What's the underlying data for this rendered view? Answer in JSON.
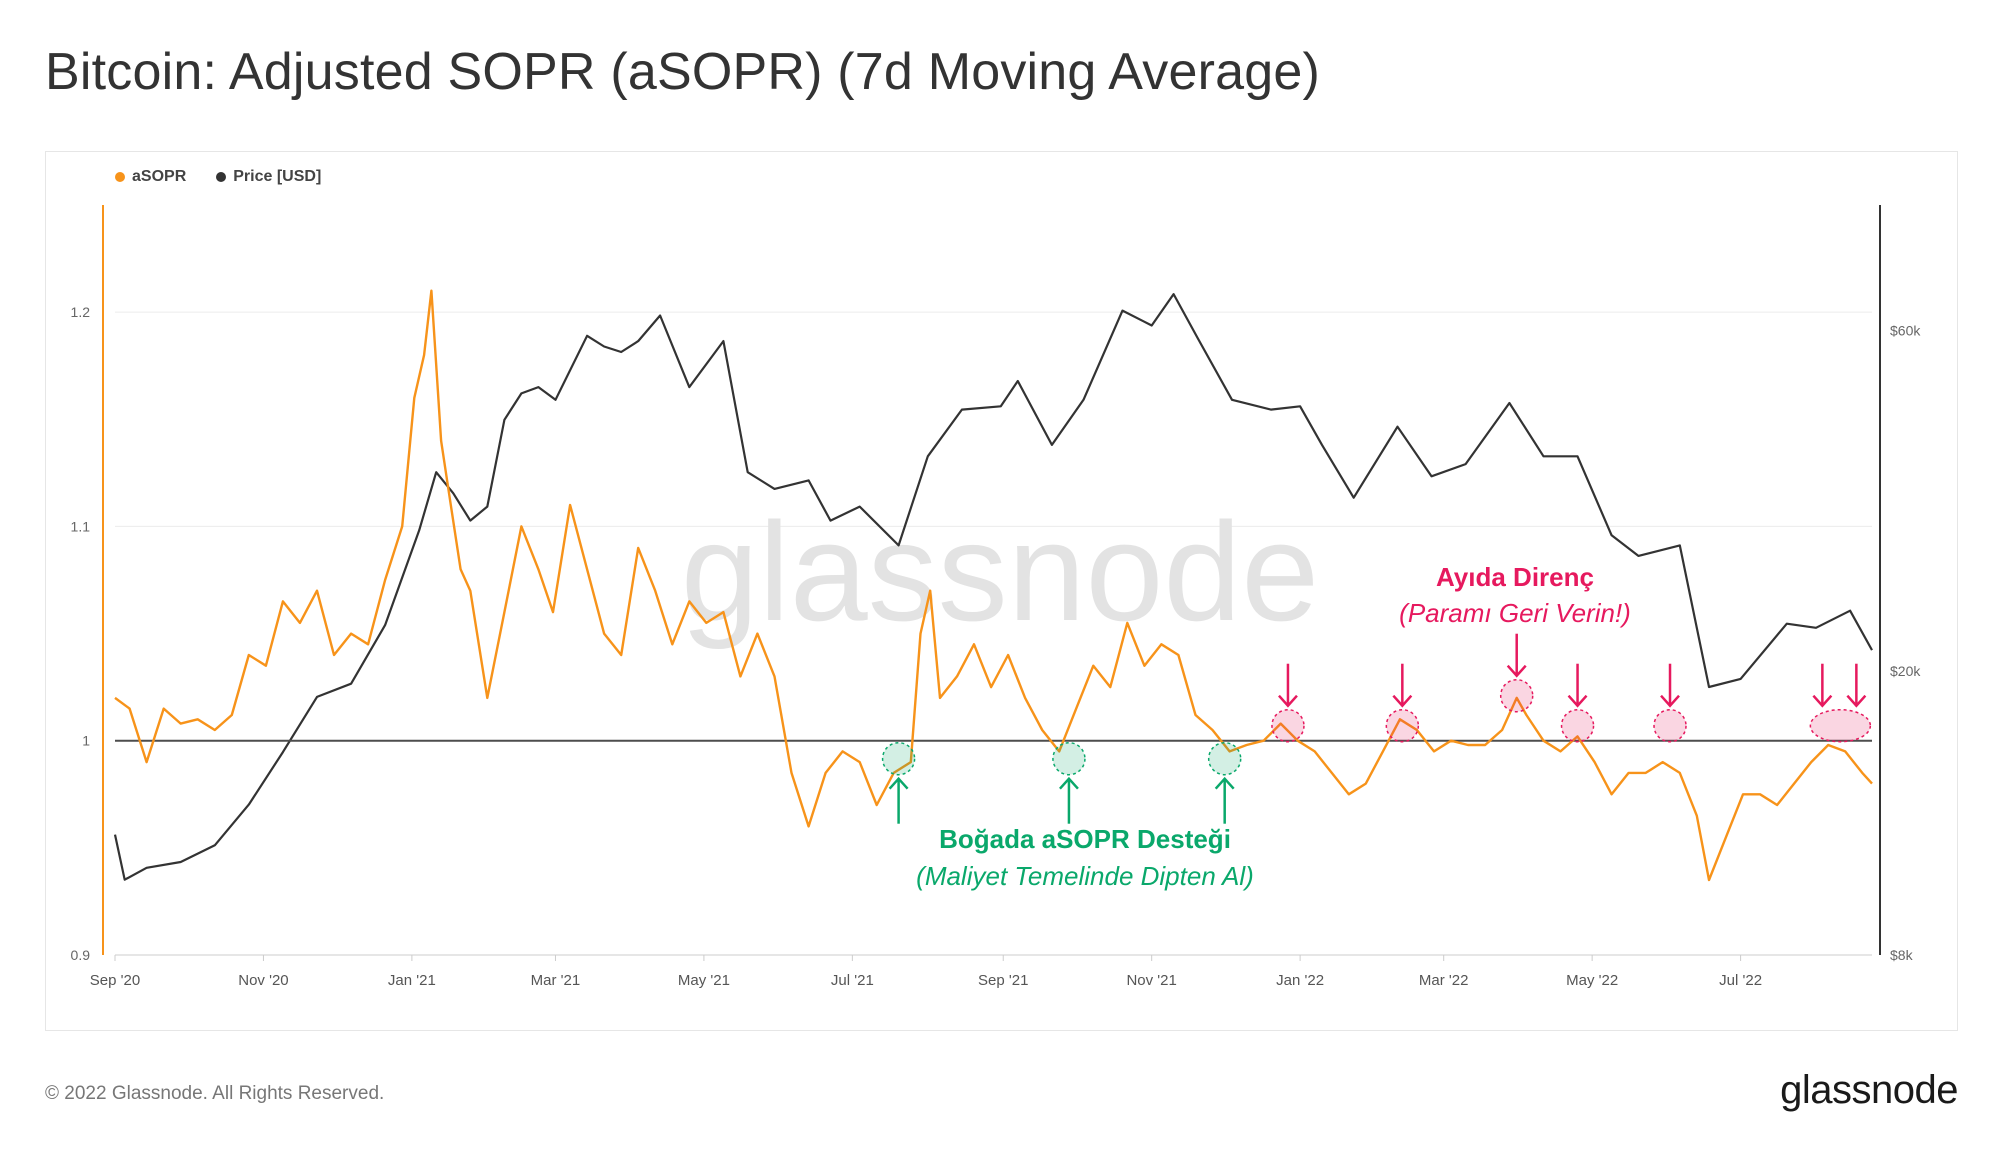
{
  "title": "Bitcoin: Adjusted SOPR (aSOPR) (7d Moving Average)",
  "footer": {
    "copyright": "© 2022 Glassnode. All Rights Reserved.",
    "brand": "glassnode"
  },
  "watermark": "glassnode",
  "colors": {
    "asopr": "#f7931a",
    "price": "#333333",
    "bull": "#0aa86b",
    "bear": "#e6195e",
    "baseline": "#4d4d4d"
  },
  "chart_data": {
    "type": "line",
    "title": "Bitcoin: Adjusted SOPR (aSOPR) (7d Moving Average)",
    "legend": [
      {
        "name": "aSOPR",
        "color": "#f7931a"
      },
      {
        "name": "Price [USD]",
        "color": "#333333"
      }
    ],
    "x_tick_labels": [
      "Sep '20",
      "Nov '20",
      "Jan '21",
      "Mar '21",
      "May '21",
      "Jul '21",
      "Sep '21",
      "Nov '21",
      "Jan '22",
      "Mar '22",
      "May '22",
      "Jul '22"
    ],
    "y_left": {
      "ticks": [
        0.9,
        1,
        1.1,
        1.2
      ],
      "tick_labels": [
        "0.9",
        "1",
        "1.1",
        "1.2"
      ],
      "range": [
        0.9,
        1.25
      ]
    },
    "y_right": {
      "scale": "log",
      "ticks": [
        8000,
        20000,
        60000
      ],
      "tick_labels": [
        "$8k",
        "$20k",
        "$60k"
      ],
      "range": [
        8000,
        90000
      ]
    },
    "baseline": 1,
    "x_range": [
      "2020-09-01",
      "2022-08-24"
    ],
    "series": [
      {
        "name": "aSOPR",
        "axis": "left",
        "points": [
          [
            "2020-09-01",
            1.02
          ],
          [
            "2020-09-07",
            1.015
          ],
          [
            "2020-09-14",
            0.99
          ],
          [
            "2020-09-21",
            1.015
          ],
          [
            "2020-09-28",
            1.008
          ],
          [
            "2020-10-05",
            1.01
          ],
          [
            "2020-10-12",
            1.005
          ],
          [
            "2020-10-19",
            1.012
          ],
          [
            "2020-10-26",
            1.04
          ],
          [
            "2020-11-02",
            1.035
          ],
          [
            "2020-11-09",
            1.065
          ],
          [
            "2020-11-16",
            1.055
          ],
          [
            "2020-11-23",
            1.07
          ],
          [
            "2020-11-30",
            1.04
          ],
          [
            "2020-12-07",
            1.05
          ],
          [
            "2020-12-14",
            1.045
          ],
          [
            "2020-12-21",
            1.075
          ],
          [
            "2020-12-28",
            1.1
          ],
          [
            "2021-01-02",
            1.16
          ],
          [
            "2021-01-06",
            1.18
          ],
          [
            "2021-01-09",
            1.21
          ],
          [
            "2021-01-13",
            1.14
          ],
          [
            "2021-01-17",
            1.11
          ],
          [
            "2021-01-21",
            1.08
          ],
          [
            "2021-01-25",
            1.07
          ],
          [
            "2021-02-01",
            1.02
          ],
          [
            "2021-02-08",
            1.06
          ],
          [
            "2021-02-15",
            1.1
          ],
          [
            "2021-02-22",
            1.08
          ],
          [
            "2021-02-28",
            1.06
          ],
          [
            "2021-03-07",
            1.11
          ],
          [
            "2021-03-14",
            1.08
          ],
          [
            "2021-03-21",
            1.05
          ],
          [
            "2021-03-28",
            1.04
          ],
          [
            "2021-04-04",
            1.09
          ],
          [
            "2021-04-11",
            1.07
          ],
          [
            "2021-04-18",
            1.045
          ],
          [
            "2021-04-25",
            1.065
          ],
          [
            "2021-05-02",
            1.055
          ],
          [
            "2021-05-09",
            1.06
          ],
          [
            "2021-05-16",
            1.03
          ],
          [
            "2021-05-23",
            1.05
          ],
          [
            "2021-05-30",
            1.03
          ],
          [
            "2021-06-06",
            0.985
          ],
          [
            "2021-06-13",
            0.96
          ],
          [
            "2021-06-20",
            0.985
          ],
          [
            "2021-06-27",
            0.995
          ],
          [
            "2021-07-04",
            0.99
          ],
          [
            "2021-07-11",
            0.97
          ],
          [
            "2021-07-18",
            0.985
          ],
          [
            "2021-07-25",
            0.99
          ],
          [
            "2021-07-29",
            1.05
          ],
          [
            "2021-08-02",
            1.07
          ],
          [
            "2021-08-06",
            1.02
          ],
          [
            "2021-08-13",
            1.03
          ],
          [
            "2021-08-20",
            1.045
          ],
          [
            "2021-08-27",
            1.025
          ],
          [
            "2021-09-03",
            1.04
          ],
          [
            "2021-09-10",
            1.02
          ],
          [
            "2021-09-17",
            1.005
          ],
          [
            "2021-09-24",
            0.995
          ],
          [
            "2021-10-01",
            1.015
          ],
          [
            "2021-10-08",
            1.035
          ],
          [
            "2021-10-15",
            1.025
          ],
          [
            "2021-10-22",
            1.055
          ],
          [
            "2021-10-29",
            1.035
          ],
          [
            "2021-11-05",
            1.045
          ],
          [
            "2021-11-12",
            1.04
          ],
          [
            "2021-11-19",
            1.012
          ],
          [
            "2021-11-26",
            1.005
          ],
          [
            "2021-12-03",
            0.995
          ],
          [
            "2021-12-10",
            0.998
          ],
          [
            "2021-12-17",
            1.0
          ],
          [
            "2021-12-24",
            1.008
          ],
          [
            "2021-12-31",
            1.0
          ],
          [
            "2022-01-07",
            0.995
          ],
          [
            "2022-01-14",
            0.985
          ],
          [
            "2022-01-21",
            0.975
          ],
          [
            "2022-01-28",
            0.98
          ],
          [
            "2022-02-04",
            0.995
          ],
          [
            "2022-02-11",
            1.01
          ],
          [
            "2022-02-18",
            1.005
          ],
          [
            "2022-02-25",
            0.995
          ],
          [
            "2022-03-04",
            1.0
          ],
          [
            "2022-03-11",
            0.998
          ],
          [
            "2022-03-18",
            0.998
          ],
          [
            "2022-03-25",
            1.005
          ],
          [
            "2022-03-31",
            1.02
          ],
          [
            "2022-04-04",
            1.012
          ],
          [
            "2022-04-11",
            1.0
          ],
          [
            "2022-04-18",
            0.995
          ],
          [
            "2022-04-25",
            1.002
          ],
          [
            "2022-05-02",
            0.99
          ],
          [
            "2022-05-09",
            0.975
          ],
          [
            "2022-05-16",
            0.985
          ],
          [
            "2022-05-23",
            0.985
          ],
          [
            "2022-05-30",
            0.99
          ],
          [
            "2022-06-06",
            0.985
          ],
          [
            "2022-06-13",
            0.965
          ],
          [
            "2022-06-18",
            0.935
          ],
          [
            "2022-06-25",
            0.955
          ],
          [
            "2022-07-02",
            0.975
          ],
          [
            "2022-07-09",
            0.975
          ],
          [
            "2022-07-16",
            0.97
          ],
          [
            "2022-07-23",
            0.98
          ],
          [
            "2022-07-30",
            0.99
          ],
          [
            "2022-08-06",
            0.998
          ],
          [
            "2022-08-13",
            0.995
          ],
          [
            "2022-08-20",
            0.985
          ],
          [
            "2022-08-24",
            0.98
          ]
        ]
      },
      {
        "name": "Price [USD]",
        "axis": "right",
        "points": [
          [
            "2020-09-01",
            11800
          ],
          [
            "2020-09-05",
            10200
          ],
          [
            "2020-09-14",
            10600
          ],
          [
            "2020-09-28",
            10800
          ],
          [
            "2020-10-12",
            11400
          ],
          [
            "2020-10-26",
            13000
          ],
          [
            "2020-11-09",
            15400
          ],
          [
            "2020-11-23",
            18400
          ],
          [
            "2020-12-07",
            19200
          ],
          [
            "2020-12-21",
            23200
          ],
          [
            "2021-01-04",
            31500
          ],
          [
            "2021-01-11",
            38000
          ],
          [
            "2021-01-18",
            35500
          ],
          [
            "2021-01-25",
            32500
          ],
          [
            "2021-02-01",
            34000
          ],
          [
            "2021-02-08",
            45000
          ],
          [
            "2021-02-15",
            49000
          ],
          [
            "2021-02-22",
            50000
          ],
          [
            "2021-03-01",
            48000
          ],
          [
            "2021-03-14",
            59000
          ],
          [
            "2021-03-21",
            57000
          ],
          [
            "2021-03-28",
            56000
          ],
          [
            "2021-04-04",
            58000
          ],
          [
            "2021-04-13",
            63000
          ],
          [
            "2021-04-25",
            50000
          ],
          [
            "2021-05-09",
            58000
          ],
          [
            "2021-05-19",
            38000
          ],
          [
            "2021-05-30",
            36000
          ],
          [
            "2021-06-13",
            37000
          ],
          [
            "2021-06-22",
            32500
          ],
          [
            "2021-07-04",
            34000
          ],
          [
            "2021-07-20",
            30000
          ],
          [
            "2021-08-01",
            40000
          ],
          [
            "2021-08-15",
            46500
          ],
          [
            "2021-08-31",
            47000
          ],
          [
            "2021-09-07",
            51000
          ],
          [
            "2021-09-21",
            41500
          ],
          [
            "2021-10-04",
            48000
          ],
          [
            "2021-10-20",
            64000
          ],
          [
            "2021-11-01",
            61000
          ],
          [
            "2021-11-10",
            67500
          ],
          [
            "2021-11-20",
            58500
          ],
          [
            "2021-12-04",
            48000
          ],
          [
            "2021-12-20",
            46500
          ],
          [
            "2022-01-01",
            47000
          ],
          [
            "2022-01-10",
            41500
          ],
          [
            "2022-01-23",
            35000
          ],
          [
            "2022-02-10",
            44000
          ],
          [
            "2022-02-24",
            37500
          ],
          [
            "2022-03-10",
            39000
          ],
          [
            "2022-03-28",
            47500
          ],
          [
            "2022-04-11",
            40000
          ],
          [
            "2022-04-25",
            40000
          ],
          [
            "2022-05-09",
            31000
          ],
          [
            "2022-05-20",
            29000
          ],
          [
            "2022-06-06",
            30000
          ],
          [
            "2022-06-18",
            19000
          ],
          [
            "2022-07-01",
            19500
          ],
          [
            "2022-07-20",
            23300
          ],
          [
            "2022-08-01",
            23000
          ],
          [
            "2022-08-15",
            24300
          ],
          [
            "2022-08-24",
            21400
          ]
        ]
      }
    ],
    "annotations": [
      {
        "type": "support",
        "label": "Boğada aSOPR Desteği",
        "sublabel": "(Maliyet Temelinde Dipten Al)",
        "markers": [
          "2021-07-20",
          "2021-09-28",
          "2021-12-01"
        ]
      },
      {
        "type": "resistance",
        "label": "Ayıda Direnç",
        "sublabel": "(Paramı Geri Verin!)",
        "markers": [
          "2021-12-27",
          "2022-02-12",
          "2022-03-31",
          "2022-04-25",
          "2022-06-02",
          "2022-08-11"
        ]
      }
    ]
  }
}
